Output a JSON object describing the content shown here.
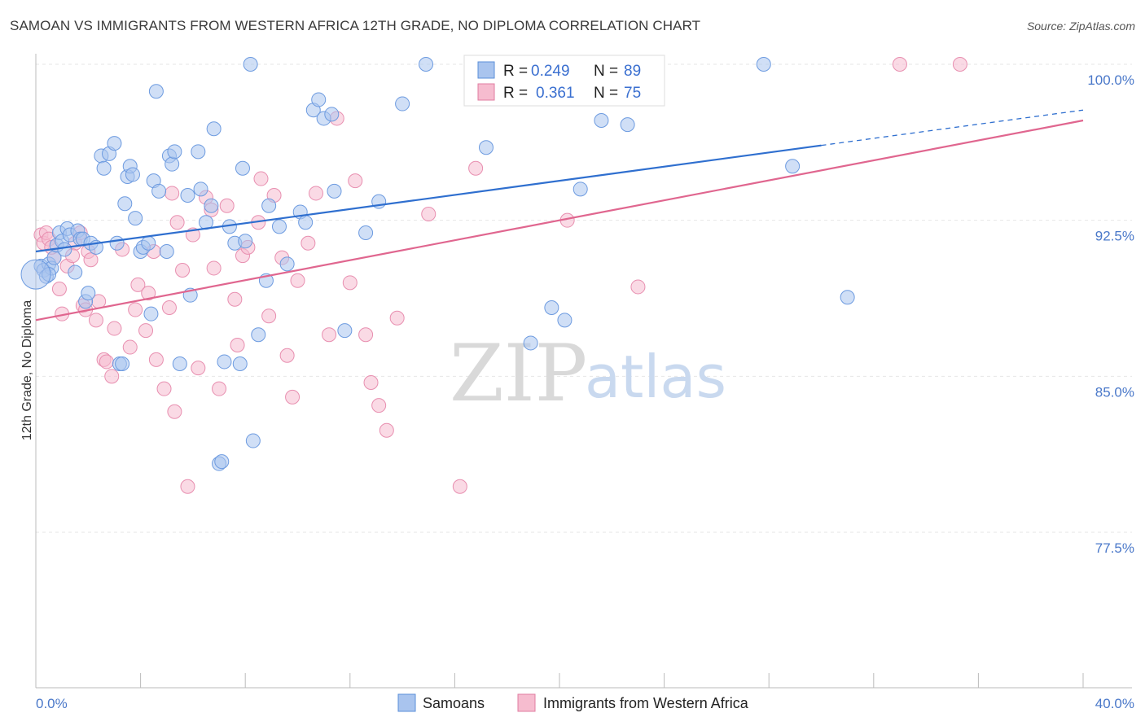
{
  "header": {
    "title": "SAMOAN VS IMMIGRANTS FROM WESTERN AFRICA 12TH GRADE, NO DIPLOMA CORRELATION CHART",
    "source": "Source: ZipAtlas.com"
  },
  "watermark": {
    "zip": "ZIP",
    "atlas": "atlas"
  },
  "legend": {
    "r_label": "R =",
    "n_label": "N =",
    "rows": [
      {
        "r": "0.249",
        "n": "89",
        "color": "#a9c4ee",
        "stroke": "#5b8fd9"
      },
      {
        "r": "0.361",
        "n": "75",
        "color": "#f6bccf",
        "stroke": "#e07ca0"
      }
    ]
  },
  "bottom_legend": [
    "Samoans",
    "Immigrants from Western Africa"
  ],
  "colors": {
    "blue_fill": "#a9c4ee",
    "blue_stroke": "#6d9be0",
    "blue_line": "#2f6fcf",
    "pink_fill": "#f6bccf",
    "pink_stroke": "#e88fb0",
    "pink_line": "#e0668f",
    "grid": "#e6e6e6",
    "tick": "#4a78c9"
  },
  "chart_data": {
    "type": "scatter",
    "title": "SAMOAN VS IMMIGRANTS FROM WESTERN AFRICA 12TH GRADE, NO DIPLOMA CORRELATION CHART",
    "xlabel": "",
    "ylabel": "12th Grade, No Diploma",
    "xlim": [
      0,
      40
    ],
    "ylim": [
      70.0,
      101.5
    ],
    "x_tick_labels": [
      "0.0%",
      "40.0%"
    ],
    "y_ticks": [
      77.5,
      85.0,
      92.5,
      100.0
    ],
    "y_tick_labels": [
      "77.5%",
      "85.0%",
      "92.5%",
      "100.0%"
    ],
    "grid": true,
    "series": [
      {
        "name": "Samoans",
        "r": 0.249,
        "n": 89,
        "trend": {
          "x0": 0,
          "y0": 91.0,
          "x1": 30,
          "y1": 96.1,
          "dashed_to_x": 40,
          "dashed_to_y": 97.8
        },
        "points": [
          [
            0.2,
            90.3
          ],
          [
            0.3,
            90.1
          ],
          [
            0.4,
            89.8
          ],
          [
            0.5,
            90.4
          ],
          [
            0.6,
            90.2
          ],
          [
            0.7,
            90.7
          ],
          [
            0.8,
            91.3
          ],
          [
            0.9,
            91.9
          ],
          [
            1.0,
            91.5
          ],
          [
            1.1,
            91.1
          ],
          [
            1.2,
            92.1
          ],
          [
            1.3,
            91.8
          ],
          [
            1.5,
            90.0
          ],
          [
            1.6,
            92.0
          ],
          [
            1.7,
            91.6
          ],
          [
            1.8,
            91.6
          ],
          [
            1.9,
            88.6
          ],
          [
            2.0,
            89.0
          ],
          [
            2.1,
            91.4
          ],
          [
            2.3,
            91.2
          ],
          [
            2.5,
            95.6
          ],
          [
            2.6,
            95.0
          ],
          [
            2.8,
            95.7
          ],
          [
            3.0,
            96.2
          ],
          [
            3.1,
            91.4
          ],
          [
            3.2,
            85.6
          ],
          [
            3.3,
            85.6
          ],
          [
            3.4,
            93.3
          ],
          [
            3.5,
            94.6
          ],
          [
            3.6,
            95.1
          ],
          [
            3.7,
            94.7
          ],
          [
            3.8,
            92.6
          ],
          [
            4.0,
            91.0
          ],
          [
            4.1,
            91.2
          ],
          [
            4.3,
            91.4
          ],
          [
            4.4,
            88.0
          ],
          [
            4.5,
            94.4
          ],
          [
            4.6,
            98.7
          ],
          [
            4.7,
            93.9
          ],
          [
            5.0,
            91.0
          ],
          [
            5.1,
            95.6
          ],
          [
            5.2,
            95.2
          ],
          [
            5.3,
            95.8
          ],
          [
            5.5,
            85.6
          ],
          [
            5.8,
            93.7
          ],
          [
            5.9,
            88.9
          ],
          [
            6.2,
            95.8
          ],
          [
            6.3,
            94.0
          ],
          [
            6.5,
            92.4
          ],
          [
            6.7,
            93.2
          ],
          [
            6.8,
            96.9
          ],
          [
            7.0,
            80.8
          ],
          [
            7.1,
            80.9
          ],
          [
            7.2,
            85.7
          ],
          [
            7.4,
            92.2
          ],
          [
            7.6,
            91.4
          ],
          [
            7.8,
            85.6
          ],
          [
            7.9,
            95.0
          ],
          [
            8.0,
            91.5
          ],
          [
            8.2,
            100.0
          ],
          [
            8.3,
            81.9
          ],
          [
            8.5,
            87.0
          ],
          [
            8.8,
            89.6
          ],
          [
            8.9,
            93.2
          ],
          [
            9.3,
            92.2
          ],
          [
            9.6,
            90.4
          ],
          [
            10.1,
            92.9
          ],
          [
            10.3,
            92.4
          ],
          [
            10.6,
            97.8
          ],
          [
            10.8,
            98.3
          ],
          [
            11.0,
            97.4
          ],
          [
            11.3,
            97.6
          ],
          [
            11.4,
            93.9
          ],
          [
            11.8,
            87.2
          ],
          [
            12.6,
            91.9
          ],
          [
            13.1,
            93.4
          ],
          [
            14.0,
            98.1
          ],
          [
            14.9,
            100.0
          ],
          [
            17.2,
            96.0
          ],
          [
            18.9,
            86.6
          ],
          [
            19.7,
            88.3
          ],
          [
            20.2,
            87.7
          ],
          [
            20.8,
            94.0
          ],
          [
            21.6,
            97.3
          ],
          [
            22.6,
            97.1
          ],
          [
            27.8,
            100.0
          ],
          [
            28.9,
            95.1
          ],
          [
            31.0,
            88.8
          ],
          [
            0.5,
            89.9
          ]
        ]
      },
      {
        "name": "Immigrants from Western Africa",
        "r": 0.361,
        "n": 75,
        "trend": {
          "x0": 0,
          "y0": 87.7,
          "x1": 40,
          "y1": 97.3
        },
        "points": [
          [
            0.2,
            91.8
          ],
          [
            0.3,
            91.4
          ],
          [
            0.4,
            91.9
          ],
          [
            0.5,
            91.6
          ],
          [
            0.7,
            90.7
          ],
          [
            0.9,
            89.2
          ],
          [
            1.0,
            88.0
          ],
          [
            1.2,
            90.3
          ],
          [
            1.5,
            91.4
          ],
          [
            1.7,
            91.9
          ],
          [
            1.8,
            88.4
          ],
          [
            1.9,
            88.2
          ],
          [
            2.0,
            91.0
          ],
          [
            2.1,
            90.6
          ],
          [
            2.3,
            87.7
          ],
          [
            2.4,
            88.6
          ],
          [
            2.6,
            85.8
          ],
          [
            2.7,
            85.7
          ],
          [
            2.9,
            85.0
          ],
          [
            3.0,
            87.3
          ],
          [
            3.3,
            91.1
          ],
          [
            3.6,
            86.4
          ],
          [
            3.8,
            88.2
          ],
          [
            3.9,
            89.4
          ],
          [
            4.2,
            87.2
          ],
          [
            4.3,
            89.0
          ],
          [
            4.5,
            91.0
          ],
          [
            4.6,
            85.8
          ],
          [
            4.9,
            84.4
          ],
          [
            5.1,
            88.3
          ],
          [
            5.2,
            93.8
          ],
          [
            5.3,
            83.3
          ],
          [
            5.4,
            92.4
          ],
          [
            5.6,
            90.1
          ],
          [
            5.8,
            79.7
          ],
          [
            6.0,
            91.8
          ],
          [
            6.2,
            85.4
          ],
          [
            6.5,
            93.6
          ],
          [
            6.7,
            93.0
          ],
          [
            6.8,
            90.2
          ],
          [
            7.0,
            84.4
          ],
          [
            7.3,
            93.2
          ],
          [
            7.6,
            88.7
          ],
          [
            7.7,
            86.5
          ],
          [
            7.9,
            90.8
          ],
          [
            8.1,
            91.2
          ],
          [
            8.5,
            92.4
          ],
          [
            8.6,
            94.5
          ],
          [
            8.9,
            87.9
          ],
          [
            9.1,
            93.7
          ],
          [
            9.4,
            90.7
          ],
          [
            9.6,
            86.0
          ],
          [
            9.8,
            84.0
          ],
          [
            10.0,
            89.6
          ],
          [
            10.4,
            91.4
          ],
          [
            10.7,
            93.8
          ],
          [
            11.2,
            87.0
          ],
          [
            11.5,
            97.4
          ],
          [
            12.0,
            89.5
          ],
          [
            12.2,
            94.4
          ],
          [
            12.6,
            87.0
          ],
          [
            12.8,
            84.7
          ],
          [
            13.1,
            83.6
          ],
          [
            13.4,
            82.4
          ],
          [
            13.8,
            87.8
          ],
          [
            15.0,
            92.8
          ],
          [
            16.2,
            79.7
          ],
          [
            16.8,
            95.0
          ],
          [
            18.0,
            100.0
          ],
          [
            20.3,
            92.5
          ],
          [
            23.0,
            89.3
          ],
          [
            33.0,
            100.0
          ],
          [
            35.3,
            100.0
          ],
          [
            0.6,
            91.2
          ],
          [
            1.4,
            90.8
          ]
        ]
      }
    ]
  }
}
